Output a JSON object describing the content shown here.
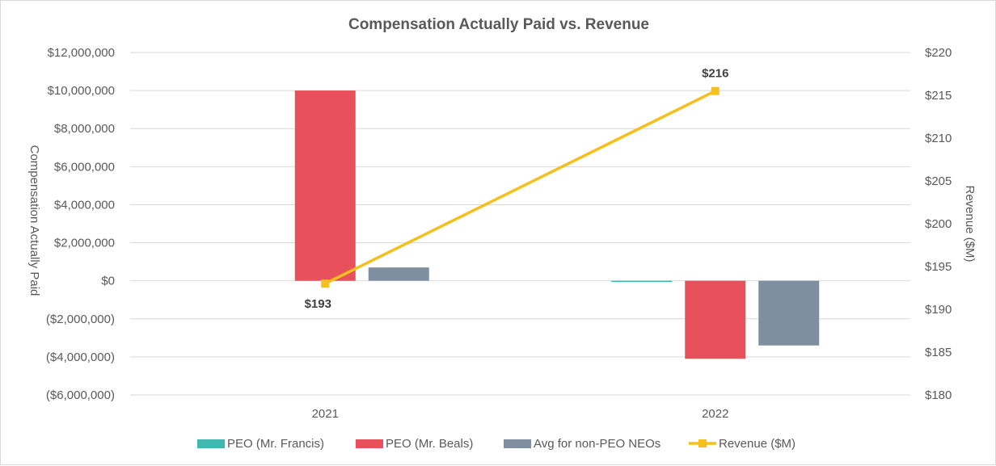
{
  "chart_data": {
    "type": "bar",
    "title": "Compensation Actually Paid vs. Revenue",
    "categories": [
      "2021",
      "2022"
    ],
    "ylabel": "Compensation Actually Paid",
    "ylabel_right": "Revenue ($M)",
    "ylim": [
      -6000000,
      12000000
    ],
    "ylim_right": [
      180,
      220
    ],
    "yticks": [
      -6000000,
      -4000000,
      -2000000,
      0,
      2000000,
      4000000,
      6000000,
      8000000,
      10000000,
      12000000
    ],
    "ytick_labels": [
      "($6,000,000)",
      "($4,000,000)",
      "($2,000,000)",
      "$0",
      "$2,000,000",
      "$4,000,000",
      "$6,000,000",
      "$8,000,000",
      "$10,000,000",
      "$12,000,000"
    ],
    "yticks_right": [
      180,
      185,
      190,
      195,
      200,
      205,
      210,
      215,
      220
    ],
    "ytick_labels_right": [
      "$180",
      "$185",
      "$190",
      "$195",
      "$200",
      "$205",
      "$210",
      "$215",
      "$220"
    ],
    "grid": true,
    "legend_position": "bottom",
    "series": [
      {
        "name": "PEO (Mr. Francis)",
        "type": "bar",
        "axis": "left",
        "color": "#3fb8af",
        "values": [
          0,
          -60000
        ]
      },
      {
        "name": "PEO (Mr. Beals)",
        "type": "bar",
        "axis": "left",
        "color": "#e8505b",
        "values": [
          10000000,
          -4100000
        ]
      },
      {
        "name": "Avg for non-PEO NEOs",
        "type": "bar",
        "axis": "left",
        "color": "#7f8fa1",
        "values": [
          700000,
          -3400000
        ]
      },
      {
        "name": "Revenue ($M)",
        "type": "line",
        "axis": "right",
        "color": "#f5bf1d",
        "values": [
          193,
          215.5
        ],
        "labels": [
          "$193",
          "$216"
        ]
      }
    ]
  }
}
